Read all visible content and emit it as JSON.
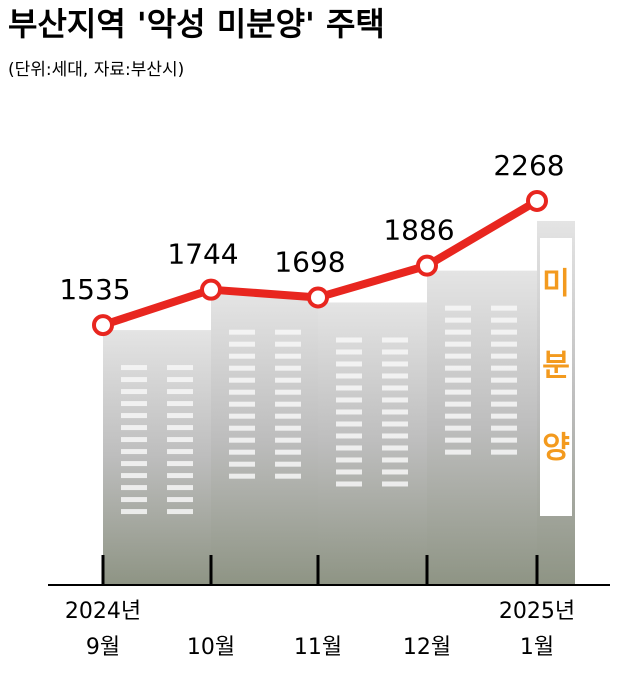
{
  "chart_data": {
    "type": "line",
    "title": "부산지역 '악성 미분양' 주택",
    "subtitle": "(단위:세대, 자료:부산시)",
    "categories": [
      [
        "2024년",
        "9월"
      ],
      [
        "10월"
      ],
      [
        "11월"
      ],
      [
        "12월"
      ],
      [
        "2025년",
        "1월"
      ]
    ],
    "series": [
      {
        "name": null,
        "color": "#e8261f",
        "values": [
          1535,
          1744,
          1698,
          1886,
          2268
        ]
      }
    ],
    "ylim": [
      0,
      3000
    ],
    "annotations": [
      "미",
      "분",
      "양"
    ]
  }
}
